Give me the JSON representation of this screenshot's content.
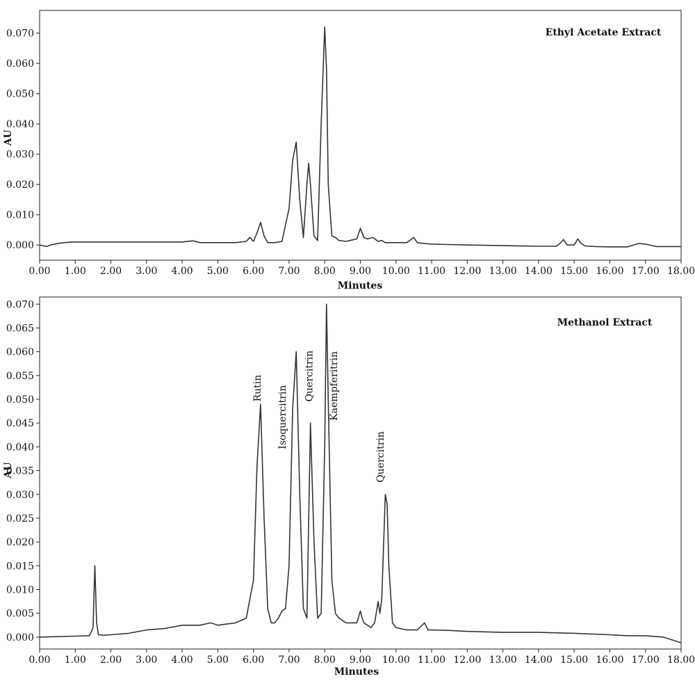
{
  "chart_data": [
    {
      "type": "line",
      "title": "Ethyl Acetate Extract",
      "xlabel": "Minutes",
      "ylabel": "AU",
      "xlim": [
        0,
        18
      ],
      "ylim": [
        -0.005,
        0.0775
      ],
      "x_ticks": [
        "0.00",
        "1.00",
        "2.00",
        "3.00",
        "4.00",
        "5.00",
        "6.00",
        "7.00",
        "8.00",
        "9.00",
        "10.00",
        "11.00",
        "12.00",
        "13.00",
        "14.00",
        "15.00",
        "16.00",
        "17.00",
        "18.00"
      ],
      "y_ticks": [
        "0.000",
        "0.010",
        "0.020",
        "0.030",
        "0.040",
        "0.050",
        "0.060",
        "0.070"
      ],
      "grid": false,
      "series": [
        {
          "x": [
            0.0,
            0.2,
            0.3,
            0.5,
            0.7,
            0.9,
            1.2,
            1.5,
            2.0,
            2.5,
            3.0,
            3.5,
            4.0,
            4.3,
            4.5,
            5.0,
            5.5,
            5.8,
            5.9,
            6.0,
            6.1,
            6.2,
            6.3,
            6.4,
            6.6,
            6.8,
            7.0,
            7.1,
            7.2,
            7.3,
            7.4,
            7.5,
            7.55,
            7.6,
            7.7,
            7.8,
            7.9,
            8.0,
            8.05,
            8.1,
            8.2,
            8.3,
            8.4,
            8.6,
            8.9,
            9.0,
            9.1,
            9.2,
            9.35,
            9.5,
            9.6,
            9.7,
            9.8,
            10.0,
            10.3,
            10.5,
            10.6,
            10.8,
            11.0,
            12.0,
            13.0,
            14.0,
            14.5,
            14.6,
            14.7,
            14.8,
            15.0,
            15.1,
            15.2,
            15.3,
            15.6,
            16.0,
            16.5,
            16.8,
            17.0,
            17.3,
            18.0
          ],
          "y": [
            0.0,
            -0.0005,
            0.0,
            0.0005,
            0.0008,
            0.001,
            0.001,
            0.001,
            0.001,
            0.001,
            0.001,
            0.001,
            0.001,
            0.0014,
            0.0008,
            0.0008,
            0.0008,
            0.0012,
            0.0025,
            0.0012,
            0.004,
            0.0075,
            0.003,
            0.0008,
            0.0008,
            0.0012,
            0.012,
            0.028,
            0.034,
            0.015,
            0.0025,
            0.02,
            0.027,
            0.02,
            0.003,
            0.0015,
            0.04,
            0.072,
            0.058,
            0.02,
            0.003,
            0.0025,
            0.0015,
            0.0012,
            0.002,
            0.0055,
            0.0025,
            0.002,
            0.0025,
            0.0012,
            0.0015,
            0.0008,
            0.0008,
            0.0008,
            0.0008,
            0.0025,
            0.0008,
            0.0005,
            0.0003,
            0.0,
            -0.0002,
            -0.0004,
            -0.0004,
            0.0005,
            0.0018,
            0.0,
            0.0,
            0.002,
            0.0005,
            -0.0003,
            -0.0005,
            -0.0006,
            -0.0006,
            0.0005,
            0.0003,
            -0.0005,
            -0.0005
          ]
        }
      ]
    },
    {
      "type": "line",
      "title": "Methanol Extract",
      "xlabel": "Minutes",
      "ylabel": "AU",
      "xlim": [
        0,
        18
      ],
      "ylim": [
        -0.0025,
        0.0715
      ],
      "x_ticks": [
        "0.00",
        "1.00",
        "2.00",
        "3.00",
        "4.00",
        "5.00",
        "6.00",
        "7.00",
        "8.00",
        "9.00",
        "10.00",
        "11.00",
        "12.00",
        "13.00",
        "14.00",
        "15.00",
        "16.00",
        "17.00",
        "18.00"
      ],
      "y_ticks": [
        "0.000",
        "0.005",
        "0.010",
        "0.015",
        "0.020",
        "0.025",
        "0.030",
        "0.035",
        "0.040",
        "0.045",
        "0.050",
        "0.055",
        "0.060",
        "0.065",
        "0.070"
      ],
      "grid": false,
      "annotations": [
        {
          "text": "Rutin",
          "x": 6.2,
          "y": 0.0495
        },
        {
          "text": "Isoquercitrin",
          "x": 6.9,
          "y": 0.0395
        },
        {
          "text": "Quercitrin",
          "x": 7.65,
          "y": 0.0495
        },
        {
          "text": "Kaempferitrin",
          "x": 8.35,
          "y": 0.0455
        },
        {
          "text": "Quercitrin",
          "x": 9.65,
          "y": 0.0325
        }
      ],
      "series": [
        {
          "x": [
            0.0,
            0.5,
            1.0,
            1.4,
            1.5,
            1.55,
            1.6,
            1.65,
            1.8,
            2.0,
            2.5,
            3.0,
            3.5,
            4.0,
            4.5,
            4.8,
            5.0,
            5.5,
            5.8,
            6.0,
            6.1,
            6.2,
            6.3,
            6.4,
            6.5,
            6.6,
            6.7,
            6.8,
            6.9,
            7.0,
            7.1,
            7.2,
            7.3,
            7.4,
            7.5,
            7.6,
            7.7,
            7.8,
            7.9,
            8.0,
            8.05,
            8.1,
            8.2,
            8.3,
            8.4,
            8.6,
            8.9,
            9.0,
            9.05,
            9.1,
            9.3,
            9.4,
            9.5,
            9.55,
            9.6,
            9.7,
            9.75,
            9.8,
            9.9,
            10.0,
            10.3,
            10.6,
            10.8,
            10.9,
            11.0,
            11.5,
            12.0,
            13.0,
            14.0,
            15.0,
            16.0,
            16.5,
            17.0,
            17.5,
            18.0
          ],
          "y": [
            0.0,
            0.0001,
            0.0002,
            0.0003,
            0.002,
            0.015,
            0.003,
            0.0005,
            0.0004,
            0.0005,
            0.0008,
            0.0015,
            0.0018,
            0.0025,
            0.0025,
            0.003,
            0.0025,
            0.003,
            0.004,
            0.012,
            0.036,
            0.049,
            0.025,
            0.006,
            0.003,
            0.003,
            0.004,
            0.0055,
            0.006,
            0.015,
            0.048,
            0.06,
            0.03,
            0.006,
            0.004,
            0.045,
            0.02,
            0.004,
            0.005,
            0.04,
            0.07,
            0.05,
            0.012,
            0.005,
            0.004,
            0.003,
            0.003,
            0.0055,
            0.004,
            0.003,
            0.002,
            0.003,
            0.0075,
            0.005,
            0.008,
            0.03,
            0.028,
            0.015,
            0.003,
            0.002,
            0.0015,
            0.0015,
            0.003,
            0.0015,
            0.0015,
            0.0014,
            0.0012,
            0.001,
            0.001,
            0.0008,
            0.0005,
            0.0003,
            0.0003,
            0.0,
            -0.0012
          ]
        }
      ]
    }
  ]
}
